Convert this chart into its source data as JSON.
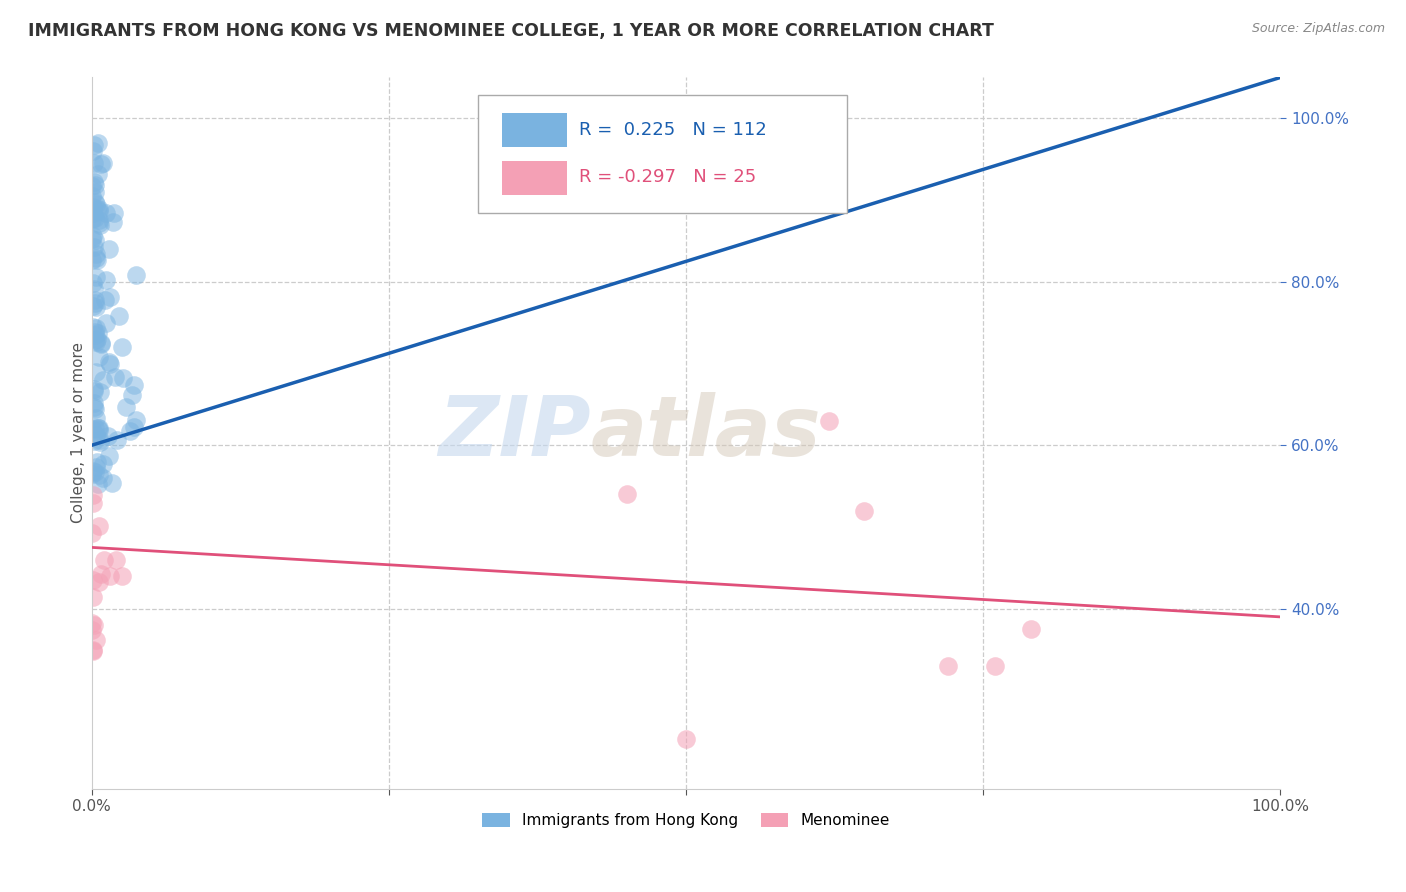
{
  "title": "IMMIGRANTS FROM HONG KONG VS MENOMINEE COLLEGE, 1 YEAR OR MORE CORRELATION CHART",
  "source_text": "Source: ZipAtlas.com",
  "ylabel": "College, 1 year or more",
  "xlim": [
    0.0,
    1.0
  ],
  "ylim": [
    0.18,
    1.05
  ],
  "ytick_positions": [
    0.4,
    0.6,
    0.8,
    1.0
  ],
  "ytick_labels": [
    "40.0%",
    "60.0%",
    "80.0%",
    "100.0%"
  ],
  "xtick_positions": [
    0.0,
    0.25,
    0.5,
    0.75,
    1.0
  ],
  "xtick_labels": [
    "0.0%",
    "",
    "",
    "",
    "100.0%"
  ],
  "legend_r_blue": "0.225",
  "legend_n_blue": "112",
  "legend_r_pink": "-0.297",
  "legend_n_pink": "25",
  "blue_color": "#7ab3e0",
  "pink_color": "#f4a0b5",
  "blue_line_color": "#1a5fb0",
  "pink_line_color": "#e0507a",
  "watermark_zip": "ZIP",
  "watermark_atlas": "atlas",
  "legend_label_blue": "Immigrants from Hong Kong",
  "legend_label_pink": "Menominee",
  "blue_trend_x": [
    0.0,
    1.0
  ],
  "blue_trend_y": [
    0.6,
    1.05
  ],
  "pink_trend_x": [
    0.0,
    1.0
  ],
  "pink_trend_y": [
    0.475,
    0.39
  ],
  "grid_color": "#cccccc",
  "grid_linestyle": "--",
  "title_color": "#333333",
  "source_color": "#888888",
  "yaxis_label_color": "#555555",
  "ytick_color": "#4472c4",
  "xtick_color": "#555555"
}
